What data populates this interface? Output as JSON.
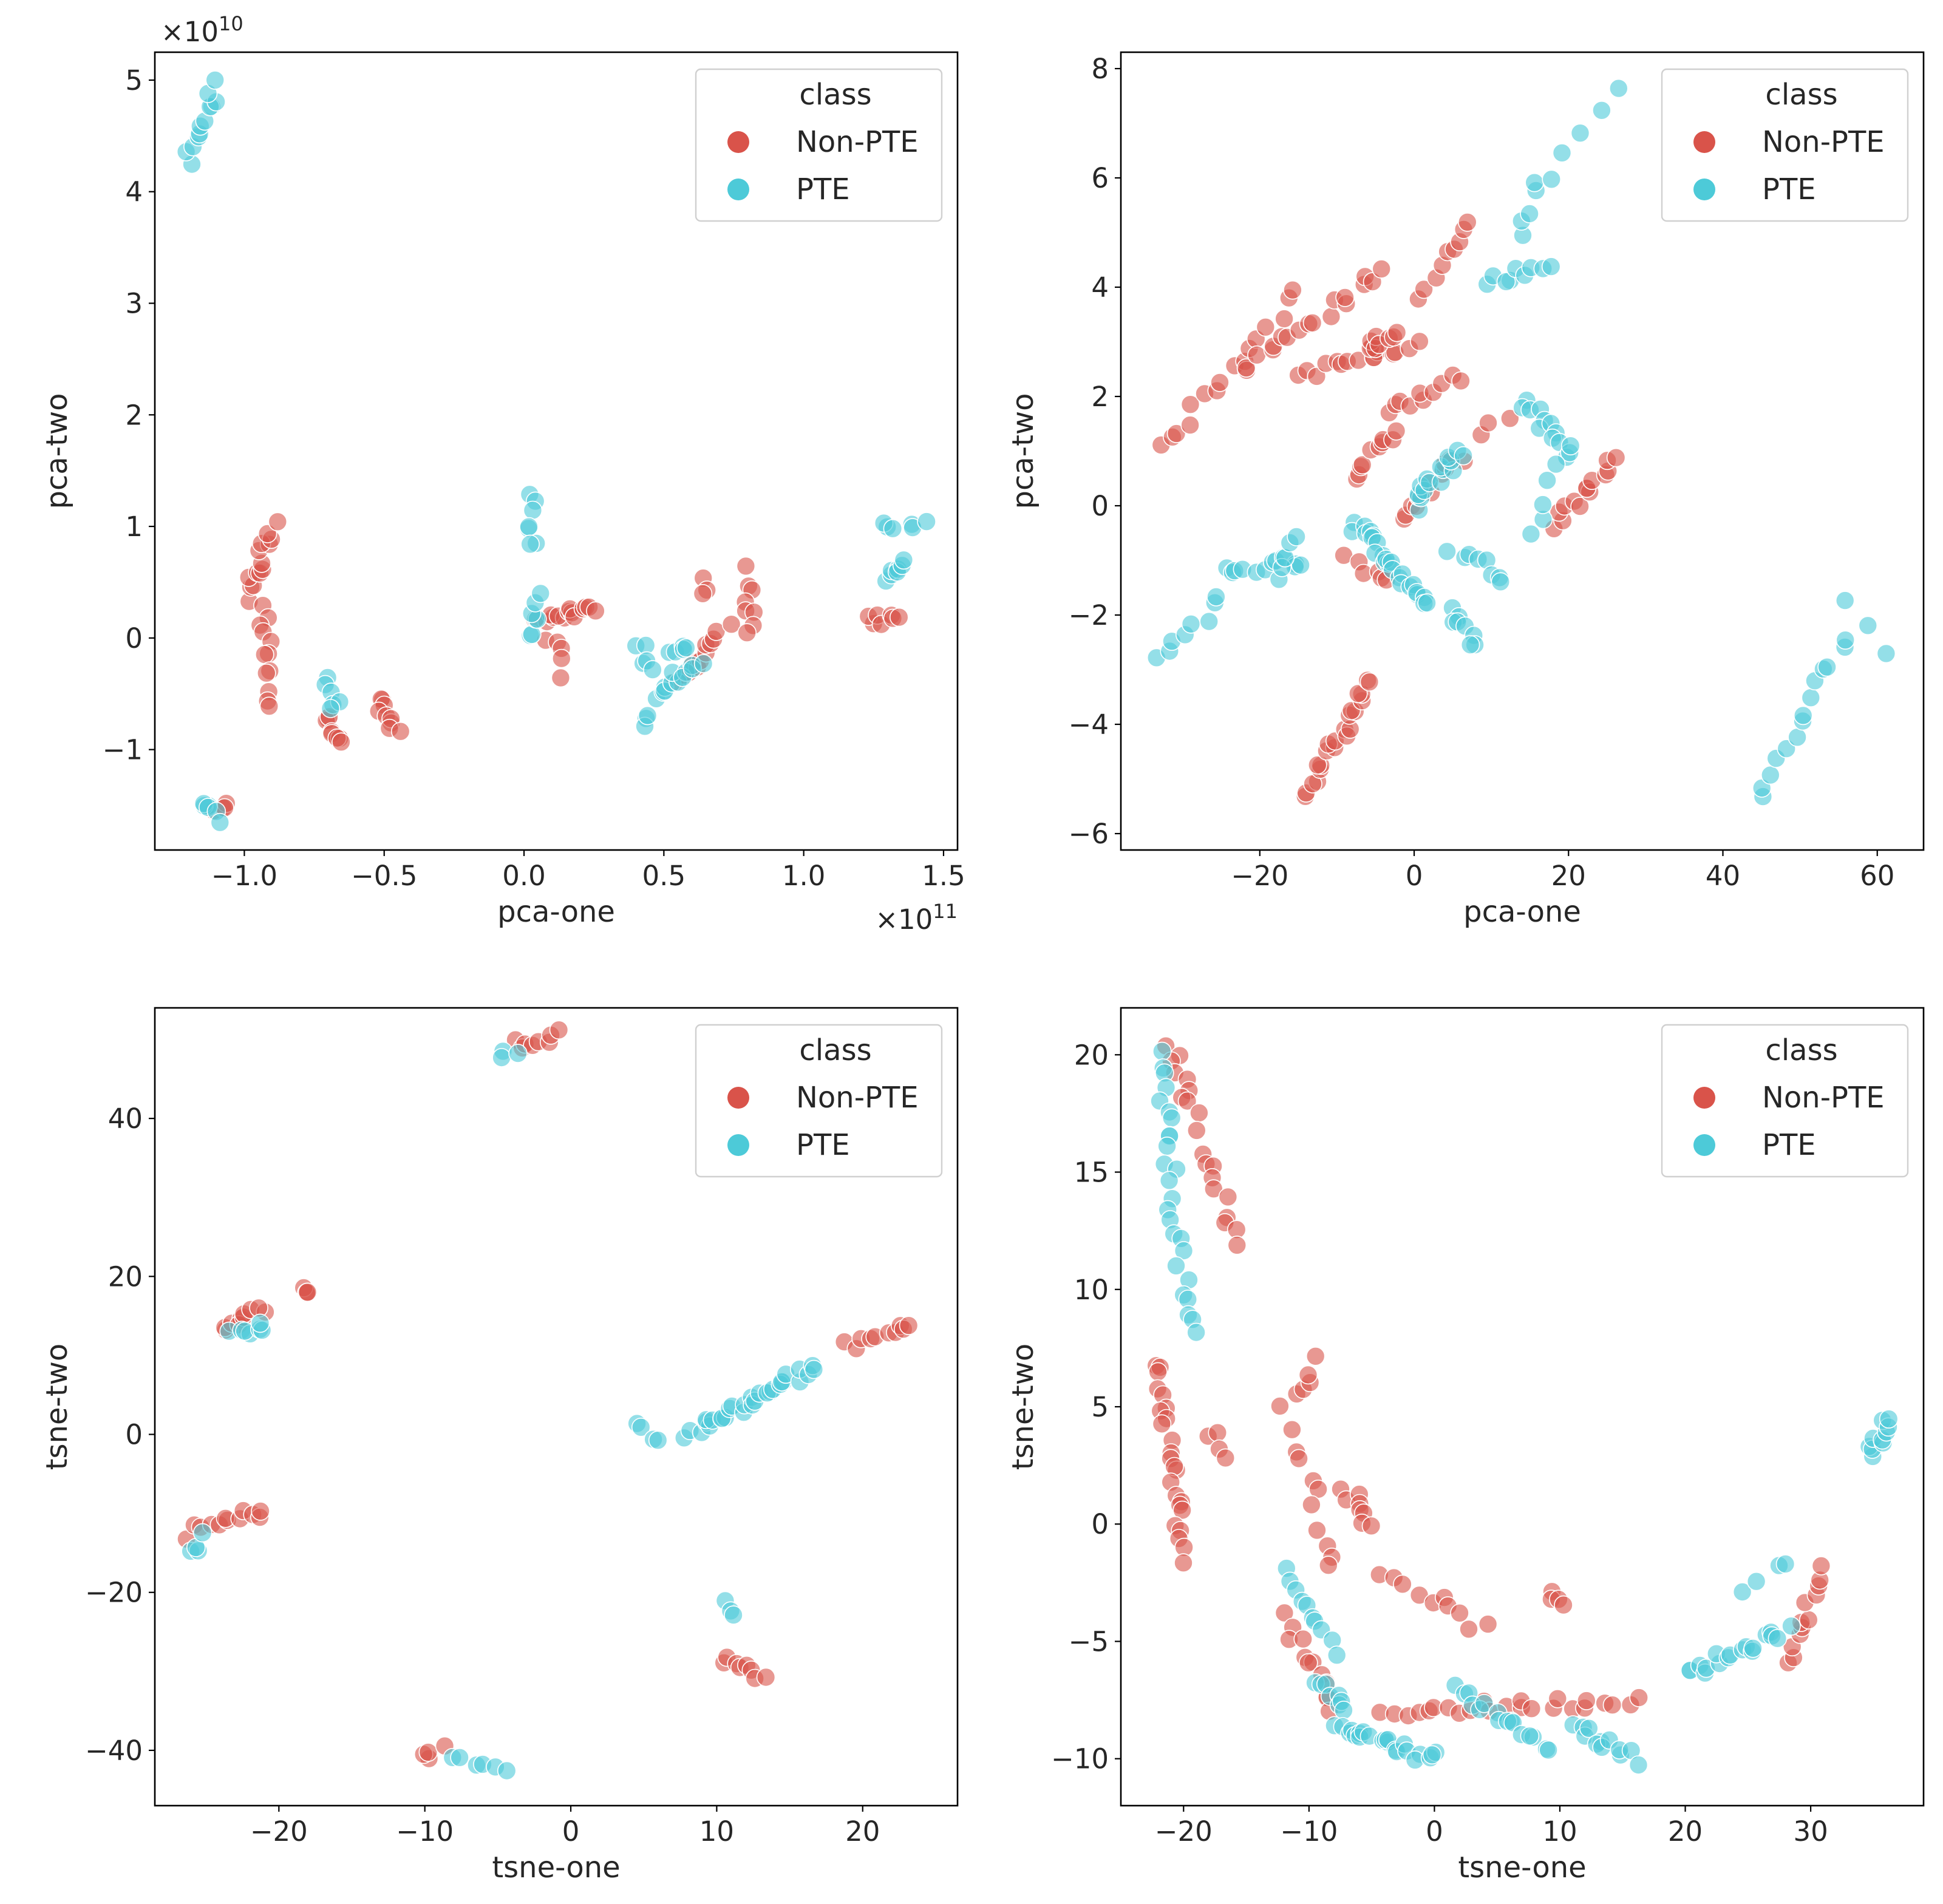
{
  "colors": {
    "Non-PTE": "#d9534a",
    "PTE": "#4dcad8"
  },
  "legend": {
    "title": "class",
    "entries": [
      "Non-PTE",
      "PTE"
    ]
  },
  "chart_data": [
    {
      "id": "pca-raw",
      "type": "scatter",
      "title": "",
      "xlabel": "pca-one",
      "ylabel": "pca-two",
      "xlim": [
        -1.32,
        1.55
      ],
      "ylim": [
        -1.9,
        5.25
      ],
      "xticks": [
        -1.0,
        -0.5,
        0.0,
        0.5,
        1.0,
        1.5
      ],
      "xtick_labels": [
        "−1.0",
        "−0.5",
        "0.0",
        "0.5",
        "1.0",
        "1.5"
      ],
      "yticks": [
        -1,
        0,
        1,
        2,
        3,
        4,
        5
      ],
      "ytick_labels": [
        "−1",
        "0",
        "1",
        "2",
        "3",
        "4",
        "5"
      ],
      "x_offset": {
        "base": "×10",
        "exp": "11"
      },
      "y_offset": {
        "base": "×10",
        "exp": "10"
      },
      "legend_loc": "upper right",
      "series": [
        {
          "name": "Non-PTE",
          "clusters": [
            {
              "x0": -0.99,
              "y0": 0.35,
              "x1": -0.9,
              "y1": 1.0,
              "n": 14
            },
            {
              "x0": -0.93,
              "y0": 0.3,
              "x1": -0.92,
              "y1": -0.6,
              "n": 12
            },
            {
              "x0": -0.71,
              "y0": -0.7,
              "x1": -0.65,
              "y1": -0.9,
              "n": 8
            },
            {
              "x0": -0.52,
              "y0": -0.55,
              "x1": -0.46,
              "y1": -0.85,
              "n": 9
            },
            {
              "x0": 0.06,
              "y0": 0.15,
              "x1": 0.26,
              "y1": 0.25,
              "n": 14
            },
            {
              "x0": 0.1,
              "y0": 0.0,
              "x1": 0.14,
              "y1": -0.3,
              "n": 5
            },
            {
              "x0": 0.55,
              "y0": -0.4,
              "x1": 0.72,
              "y1": 0.1,
              "n": 12
            },
            {
              "x0": 0.64,
              "y0": 0.5,
              "x1": 0.64,
              "y1": 0.4,
              "n": 3
            },
            {
              "x0": 0.81,
              "y0": 0.6,
              "x1": 0.81,
              "y1": 0.05,
              "n": 8
            },
            {
              "x0": 1.23,
              "y0": 0.15,
              "x1": 1.35,
              "y1": 0.15,
              "n": 7
            },
            {
              "x0": -1.1,
              "y0": -1.55,
              "x1": -1.06,
              "y1": -1.48,
              "n": 4
            }
          ]
        },
        {
          "name": "PTE",
          "clusters": [
            {
              "x0": -1.2,
              "y0": 4.3,
              "x1": -1.1,
              "y1": 4.95,
              "n": 12
            },
            {
              "x0": -1.15,
              "y0": -1.45,
              "x1": -1.1,
              "y1": -1.65,
              "n": 6
            },
            {
              "x0": -0.71,
              "y0": -0.4,
              "x1": -0.67,
              "y1": -0.65,
              "n": 6
            },
            {
              "x0": 0.03,
              "y0": 1.25,
              "x1": 0.03,
              "y1": 0.8,
              "n": 7
            },
            {
              "x0": 0.01,
              "y0": 0.0,
              "x1": 0.06,
              "y1": 0.4,
              "n": 7
            },
            {
              "x0": 0.42,
              "y0": -0.05,
              "x1": 0.46,
              "y1": -0.3,
              "n": 5
            },
            {
              "x0": 0.47,
              "y0": -0.5,
              "x1": 0.62,
              "y1": -0.25,
              "n": 12
            },
            {
              "x0": 0.52,
              "y0": -0.15,
              "x1": 0.6,
              "y1": -0.05,
              "n": 5
            },
            {
              "x0": 0.42,
              "y0": -0.72,
              "x1": 0.46,
              "y1": -0.75,
              "n": 3
            },
            {
              "x0": 1.28,
              "y0": 0.5,
              "x1": 1.35,
              "y1": 0.7,
              "n": 7
            },
            {
              "x0": 1.28,
              "y0": 1.0,
              "x1": 1.42,
              "y1": 1.05,
              "n": 6
            }
          ]
        }
      ]
    },
    {
      "id": "pca-scaled",
      "type": "scatter",
      "title": "",
      "xlabel": "pca-one",
      "ylabel": "pca-two",
      "xlim": [
        -38,
        66
      ],
      "ylim": [
        -6.3,
        8.3
      ],
      "xticks": [
        -20,
        0,
        20,
        40,
        60
      ],
      "xtick_labels": [
        "−20",
        "0",
        "20",
        "40",
        "60"
      ],
      "yticks": [
        -6,
        -4,
        -2,
        0,
        2,
        4,
        6,
        8
      ],
      "ytick_labels": [
        "−6",
        "−4",
        "−2",
        "0",
        "2",
        "4",
        "6",
        "8"
      ],
      "legend_loc": "upper right",
      "series": [
        {
          "name": "Non-PTE",
          "clusters": [
            {
              "x0": -33,
              "y0": 1.0,
              "x1": -15,
              "y1": 3.9,
              "n": 16
            },
            {
              "x0": -22,
              "y0": 2.5,
              "x1": -4,
              "y1": 4.3,
              "n": 18
            },
            {
              "x0": -15,
              "y0": 2.4,
              "x1": 0,
              "y1": 2.9,
              "n": 14
            },
            {
              "x0": -6,
              "y0": 2.8,
              "x1": -3,
              "y1": 3.2,
              "n": 10
            },
            {
              "x0": 1,
              "y0": 3.8,
              "x1": 7,
              "y1": 5.3,
              "n": 9
            },
            {
              "x0": -4,
              "y0": 1.7,
              "x1": 6,
              "y1": 2.4,
              "n": 10
            },
            {
              "x0": -8,
              "y0": 0.6,
              "x1": -2,
              "y1": 1.3,
              "n": 10
            },
            {
              "x0": -2,
              "y0": -0.2,
              "x1": 6,
              "y1": 0.9,
              "n": 12
            },
            {
              "x0": 18,
              "y0": -0.4,
              "x1": 26,
              "y1": 0.9,
              "n": 14
            },
            {
              "x0": -14,
              "y0": -5.3,
              "x1": -6,
              "y1": -3.2,
              "n": 22
            },
            {
              "x0": -9,
              "y0": -1.0,
              "x1": -3,
              "y1": -1.4,
              "n": 6
            },
            {
              "x0": 8,
              "y0": 1.2,
              "x1": 12,
              "y1": 1.7,
              "n": 3
            }
          ]
        },
        {
          "name": "PTE",
          "clusters": [
            {
              "x0": -33,
              "y0": -2.8,
              "x1": -25,
              "y1": -1.7,
              "n": 8
            },
            {
              "x0": -25,
              "y0": -1.2,
              "x1": -14,
              "y1": -1.0,
              "n": 12
            },
            {
              "x0": -18,
              "y0": -1.3,
              "x1": -16,
              "y1": -0.5,
              "n": 5
            },
            {
              "x0": -8,
              "y0": -0.3,
              "x1": 2,
              "y1": -1.8,
              "n": 25
            },
            {
              "x0": 0,
              "y0": 0.0,
              "x1": 6,
              "y1": 1.0,
              "n": 16
            },
            {
              "x0": 5,
              "y0": -0.8,
              "x1": 12,
              "y1": -1.3,
              "n": 8
            },
            {
              "x0": 5,
              "y0": -1.8,
              "x1": 8,
              "y1": -2.6,
              "n": 8
            },
            {
              "x0": 10,
              "y0": 4.1,
              "x1": 17,
              "y1": 4.4,
              "n": 9
            },
            {
              "x0": 14,
              "y0": 5.0,
              "x1": 16,
              "y1": 5.9,
              "n": 5
            },
            {
              "x0": 17,
              "y0": 6.0,
              "x1": 27,
              "y1": 7.6,
              "n": 5
            },
            {
              "x0": 14,
              "y0": 2.0,
              "x1": 20,
              "y1": 0.9,
              "n": 12
            },
            {
              "x0": 15,
              "y0": -0.5,
              "x1": 20,
              "y1": 1.0,
              "n": 6
            },
            {
              "x0": 45,
              "y0": -5.3,
              "x1": 56,
              "y1": -2.4,
              "n": 14
            },
            {
              "x0": 55,
              "y0": -1.8,
              "x1": 61,
              "y1": -2.8,
              "n": 3
            }
          ]
        }
      ]
    },
    {
      "id": "tsne-raw",
      "type": "scatter",
      "title": "",
      "xlabel": "tsne-one",
      "ylabel": "tsne-two",
      "xlim": [
        -28.5,
        26.5
      ],
      "ylim": [
        -47,
        54
      ],
      "xticks": [
        -20,
        -10,
        0,
        10,
        20
      ],
      "xtick_labels": [
        "−20",
        "−10",
        "0",
        "10",
        "20"
      ],
      "yticks": [
        -40,
        -20,
        0,
        20,
        40
      ],
      "ytick_labels": [
        "−40",
        "−20",
        "0",
        "20",
        "40"
      ],
      "legend_loc": "upper right",
      "series": [
        {
          "name": "Non-PTE",
          "clusters": [
            {
              "x0": -4,
              "y0": 49.5,
              "x1": -1,
              "y1": 50.5,
              "n": 8
            },
            {
              "x0": -24,
              "y0": 13.5,
              "x1": -21,
              "y1": 15.5,
              "n": 10
            },
            {
              "x0": -18.5,
              "y0": 18.5,
              "x1": -18,
              "y1": 18.0,
              "n": 4
            },
            {
              "x0": -26,
              "y0": -12.5,
              "x1": -21,
              "y1": -9.5,
              "n": 12
            },
            {
              "x0": -10,
              "y0": -41,
              "x1": -9,
              "y1": -40,
              "n": 4
            },
            {
              "x0": 10.5,
              "y0": -28.5,
              "x1": 13,
              "y1": -30.5,
              "n": 8
            },
            {
              "x0": 19,
              "y0": 11,
              "x1": 23.5,
              "y1": 14,
              "n": 10
            }
          ]
        },
        {
          "name": "PTE",
          "clusters": [
            {
              "x0": -5,
              "y0": 48.5,
              "x1": -4,
              "y1": 48.5,
              "n": 3
            },
            {
              "x0": -23,
              "y0": 12.5,
              "x1": -21,
              "y1": 13.5,
              "n": 7
            },
            {
              "x0": -26,
              "y0": -15,
              "x1": -25,
              "y1": -13,
              "n": 4
            },
            {
              "x0": -8,
              "y0": -41.5,
              "x1": -4,
              "y1": -42,
              "n": 6
            },
            {
              "x0": 10.5,
              "y0": -21.8,
              "x1": 11,
              "y1": -22.2,
              "n": 3
            },
            {
              "x0": 4.5,
              "y0": 0.8,
              "x1": 6,
              "y1": -0.3,
              "n": 4
            },
            {
              "x0": 8,
              "y0": 0.0,
              "x1": 16.5,
              "y1": 8.5,
              "n": 30
            }
          ]
        }
      ]
    },
    {
      "id": "tsne-scaled",
      "type": "scatter",
      "title": "",
      "xlabel": "tsne-one",
      "ylabel": "tsne-two",
      "xlim": [
        -25,
        39
      ],
      "ylim": [
        -12,
        22
      ],
      "xticks": [
        -20,
        -10,
        0,
        10,
        20,
        30
      ],
      "xtick_labels": [
        "−20",
        "−10",
        "0",
        "10",
        "20",
        "30"
      ],
      "yticks": [
        -10,
        -5,
        0,
        5,
        10,
        15,
        20
      ],
      "ytick_labels": [
        "−10",
        "−5",
        "0",
        "5",
        "10",
        "15",
        "20"
      ],
      "legend_loc": "upper right",
      "series": [
        {
          "name": "Non-PTE",
          "clusters": [
            {
              "x0": -21,
              "y0": 20.5,
              "x1": -19,
              "y1": 17,
              "n": 10
            },
            {
              "x0": -18,
              "y0": 16,
              "x1": -16,
              "y1": 12,
              "n": 10
            },
            {
              "x0": -22,
              "y0": 7,
              "x1": -20,
              "y1": -1.5,
              "n": 24
            },
            {
              "x0": -18,
              "y0": 4,
              "x1": -17,
              "y1": 3,
              "n": 4
            },
            {
              "x0": -12,
              "y0": 5,
              "x1": -9,
              "y1": 7,
              "n": 6
            },
            {
              "x0": -11,
              "y0": 4,
              "x1": -8,
              "y1": -2,
              "n": 10
            },
            {
              "x0": -7,
              "y0": 1.5,
              "x1": -5,
              "y1": 0,
              "n": 8
            },
            {
              "x0": -4,
              "y0": -2,
              "x1": 4,
              "y1": -4.5,
              "n": 10
            },
            {
              "x0": -12,
              "y0": -4,
              "x1": -8,
              "y1": -8,
              "n": 12
            },
            {
              "x0": -4,
              "y0": -8,
              "x1": 16,
              "y1": -7.5,
              "n": 24
            },
            {
              "x0": 9,
              "y0": -2.8,
              "x1": 10,
              "y1": -3.2,
              "n": 4
            },
            {
              "x0": 28,
              "y0": -6,
              "x1": 31,
              "y1": -2,
              "n": 12
            }
          ]
        },
        {
          "name": "PTE",
          "clusters": [
            {
              "x0": -22,
              "y0": 20,
              "x1": -21,
              "y1": 15,
              "n": 12
            },
            {
              "x0": -21,
              "y0": 14.5,
              "x1": -19.5,
              "y1": 8,
              "n": 14
            },
            {
              "x0": -12,
              "y0": -2,
              "x1": -8,
              "y1": -5.5,
              "n": 10
            },
            {
              "x0": -9,
              "y0": -6.5,
              "x1": -7,
              "y1": -8,
              "n": 8
            },
            {
              "x0": -8,
              "y0": -8.5,
              "x1": 0,
              "y1": -10,
              "n": 22
            },
            {
              "x0": 2,
              "y0": -7,
              "x1": 9,
              "y1": -9.5,
              "n": 16
            },
            {
              "x0": 11,
              "y0": -8.5,
              "x1": 16,
              "y1": -10,
              "n": 12
            },
            {
              "x0": 20,
              "y0": -6.5,
              "x1": 28,
              "y1": -4.5,
              "n": 18
            },
            {
              "x0": 25,
              "y0": -3,
              "x1": 28,
              "y1": -1.5,
              "n": 4
            },
            {
              "x0": 35,
              "y0": 3,
              "x1": 36,
              "y1": 4.5,
              "n": 10
            }
          ]
        }
      ]
    }
  ]
}
